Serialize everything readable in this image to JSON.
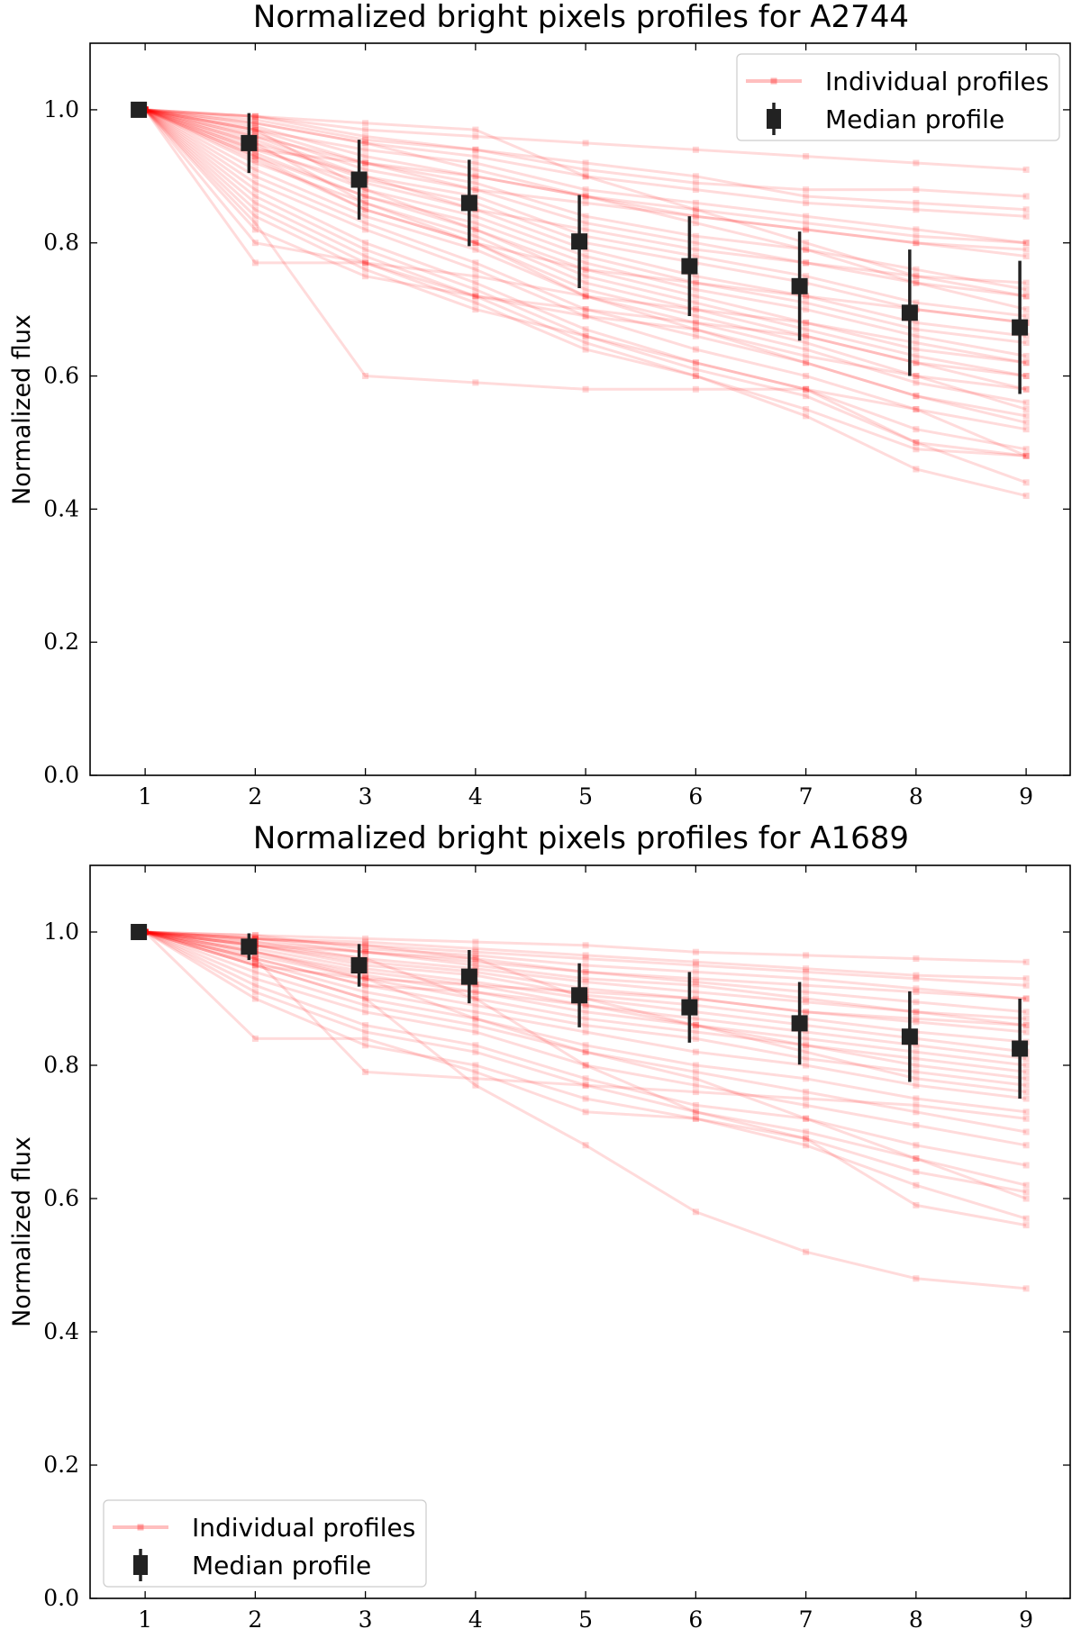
{
  "chart_data": [
    {
      "type": "line",
      "title": "Normalized bright pixels profiles for A2744",
      "xlabel": "",
      "ylabel": "Normalized flux",
      "x": [
        1,
        2,
        3,
        4,
        5,
        6,
        7,
        8,
        9
      ],
      "xticks": [
        "1",
        "2",
        "3",
        "4",
        "5",
        "6",
        "7",
        "8",
        "9"
      ],
      "yticks": [
        "0.0",
        "0.2",
        "0.4",
        "0.6",
        "0.8",
        "1.0"
      ],
      "xlim": [
        0.5,
        9.4
      ],
      "ylim": [
        0.0,
        1.1
      ],
      "legend_position": "top-right",
      "series": [
        {
          "name": "Individual profiles",
          "color": "#ff0000",
          "style": "faint lines with square markers",
          "count": "many"
        },
        {
          "name": "Median profile",
          "color": "#222222",
          "style": "square markers with error bars",
          "x": [
            1,
            2,
            3,
            4,
            5,
            6,
            7,
            8,
            9
          ],
          "values": [
            1.0,
            0.95,
            0.895,
            0.86,
            0.802,
            0.765,
            0.735,
            0.695,
            0.673
          ],
          "errors": [
            0.0,
            0.045,
            0.06,
            0.065,
            0.07,
            0.075,
            0.082,
            0.095,
            0.1
          ]
        }
      ],
      "individual_profiles_sample": [
        [
          1.0,
          0.99,
          0.97,
          0.96,
          0.95,
          0.94,
          0.93,
          0.92,
          0.91
        ],
        [
          1.0,
          0.99,
          0.96,
          0.94,
          0.91,
          0.89,
          0.88,
          0.88,
          0.87
        ],
        [
          1.0,
          0.98,
          0.95,
          0.93,
          0.9,
          0.88,
          0.86,
          0.85,
          0.84
        ],
        [
          1.0,
          0.985,
          0.955,
          0.94,
          0.92,
          0.9,
          0.87,
          0.86,
          0.85
        ],
        [
          1.0,
          0.97,
          0.94,
          0.92,
          0.88,
          0.86,
          0.84,
          0.82,
          0.8
        ],
        [
          1.0,
          0.975,
          0.93,
          0.9,
          0.87,
          0.84,
          0.82,
          0.8,
          0.78
        ],
        [
          1.0,
          0.96,
          0.92,
          0.89,
          0.84,
          0.81,
          0.79,
          0.76,
          0.73
        ],
        [
          1.0,
          0.965,
          0.91,
          0.88,
          0.83,
          0.8,
          0.77,
          0.74,
          0.72
        ],
        [
          1.0,
          0.95,
          0.9,
          0.87,
          0.81,
          0.78,
          0.75,
          0.71,
          0.69
        ],
        [
          1.0,
          0.955,
          0.895,
          0.86,
          0.8,
          0.77,
          0.74,
          0.7,
          0.68
        ],
        [
          1.0,
          0.94,
          0.89,
          0.85,
          0.79,
          0.75,
          0.72,
          0.68,
          0.66
        ],
        [
          1.0,
          0.945,
          0.88,
          0.84,
          0.78,
          0.74,
          0.71,
          0.67,
          0.65
        ],
        [
          1.0,
          0.93,
          0.87,
          0.83,
          0.77,
          0.73,
          0.7,
          0.66,
          0.63
        ],
        [
          1.0,
          0.935,
          0.87,
          0.82,
          0.76,
          0.72,
          0.68,
          0.64,
          0.62
        ],
        [
          1.0,
          0.92,
          0.86,
          0.81,
          0.74,
          0.7,
          0.66,
          0.62,
          0.6
        ],
        [
          1.0,
          0.925,
          0.85,
          0.8,
          0.73,
          0.69,
          0.65,
          0.6,
          0.58
        ],
        [
          1.0,
          0.91,
          0.84,
          0.79,
          0.72,
          0.68,
          0.64,
          0.59,
          0.56
        ],
        [
          1.0,
          0.9,
          0.83,
          0.77,
          0.7,
          0.66,
          0.62,
          0.57,
          0.54
        ],
        [
          1.0,
          0.89,
          0.82,
          0.76,
          0.69,
          0.64,
          0.6,
          0.55,
          0.52
        ],
        [
          1.0,
          0.88,
          0.8,
          0.74,
          0.67,
          0.62,
          0.58,
          0.52,
          0.49
        ],
        [
          1.0,
          0.87,
          0.79,
          0.73,
          0.66,
          0.61,
          0.57,
          0.5,
          0.48
        ],
        [
          1.0,
          0.86,
          0.78,
          0.72,
          0.65,
          0.6,
          0.55,
          0.49,
          0.48
        ],
        [
          1.0,
          0.85,
          0.77,
          0.71,
          0.64,
          0.6,
          0.54,
          0.46,
          0.42
        ],
        [
          1.0,
          0.84,
          0.76,
          0.7,
          0.66,
          0.62,
          0.58,
          0.5,
          0.44
        ],
        [
          1.0,
          0.82,
          0.75,
          0.72,
          0.7,
          0.68,
          0.66,
          0.62,
          0.58
        ],
        [
          1.0,
          0.8,
          0.77,
          0.75,
          0.72,
          0.7,
          0.68,
          0.65,
          0.62
        ],
        [
          1.0,
          0.77,
          0.77,
          0.72,
          0.69,
          0.67,
          0.63,
          0.6,
          0.55
        ],
        [
          1.0,
          0.83,
          0.6,
          0.59,
          0.58,
          0.58,
          0.58,
          0.55,
          0.48
        ],
        [
          1.0,
          0.97,
          0.92,
          0.88,
          0.86,
          0.84,
          0.82,
          0.8,
          0.79
        ],
        [
          1.0,
          0.96,
          0.9,
          0.85,
          0.82,
          0.79,
          0.77,
          0.75,
          0.74
        ],
        [
          1.0,
          0.93,
          0.85,
          0.8,
          0.76,
          0.74,
          0.72,
          0.7,
          0.68
        ],
        [
          1.0,
          0.98,
          0.95,
          0.91,
          0.87,
          0.83,
          0.79,
          0.74,
          0.7
        ],
        [
          1.0,
          0.97,
          0.88,
          0.82,
          0.75,
          0.71,
          0.67,
          0.63,
          0.6
        ],
        [
          1.0,
          0.95,
          0.86,
          0.8,
          0.72,
          0.67,
          0.62,
          0.57,
          0.53
        ],
        [
          1.0,
          0.99,
          0.98,
          0.97,
          0.9,
          0.85,
          0.8,
          0.75,
          0.72
        ],
        [
          1.0,
          0.94,
          0.92,
          0.9,
          0.87,
          0.85,
          0.83,
          0.81,
          0.8
        ]
      ]
    },
    {
      "type": "line",
      "title": "Normalized bright pixels profiles for A1689",
      "xlabel": "",
      "ylabel": "Normalized flux",
      "x": [
        1,
        2,
        3,
        4,
        5,
        6,
        7,
        8,
        9
      ],
      "xticks": [
        "1",
        "2",
        "3",
        "4",
        "5",
        "6",
        "7",
        "8",
        "9"
      ],
      "yticks": [
        "0.0",
        "0.2",
        "0.4",
        "0.6",
        "0.8",
        "1.0"
      ],
      "xlim": [
        0.5,
        9.4
      ],
      "ylim": [
        0.0,
        1.1
      ],
      "legend_position": "bottom-left",
      "series": [
        {
          "name": "Individual profiles",
          "color": "#ff0000",
          "style": "faint lines with square markers",
          "count": "many"
        },
        {
          "name": "Median profile",
          "color": "#222222",
          "style": "square markers with error bars",
          "x": [
            1,
            2,
            3,
            4,
            5,
            6,
            7,
            8,
            9
          ],
          "values": [
            1.0,
            0.978,
            0.95,
            0.933,
            0.905,
            0.887,
            0.863,
            0.843,
            0.825
          ],
          "errors": [
            0.0,
            0.02,
            0.032,
            0.04,
            0.048,
            0.053,
            0.062,
            0.068,
            0.075
          ]
        }
      ],
      "individual_profiles_sample": [
        [
          1.0,
          0.995,
          0.99,
          0.985,
          0.98,
          0.97,
          0.965,
          0.96,
          0.955
        ],
        [
          1.0,
          0.99,
          0.98,
          0.97,
          0.96,
          0.95,
          0.94,
          0.93,
          0.92
        ],
        [
          1.0,
          0.995,
          0.975,
          0.965,
          0.95,
          0.94,
          0.93,
          0.915,
          0.9
        ],
        [
          1.0,
          0.99,
          0.97,
          0.955,
          0.94,
          0.925,
          0.91,
          0.895,
          0.88
        ],
        [
          1.0,
          0.985,
          0.96,
          0.945,
          0.925,
          0.91,
          0.895,
          0.88,
          0.87
        ],
        [
          1.0,
          0.98,
          0.955,
          0.94,
          0.915,
          0.9,
          0.88,
          0.865,
          0.85
        ],
        [
          1.0,
          0.98,
          0.95,
          0.935,
          0.905,
          0.89,
          0.87,
          0.85,
          0.835
        ],
        [
          1.0,
          0.975,
          0.945,
          0.925,
          0.9,
          0.88,
          0.86,
          0.84,
          0.82
        ],
        [
          1.0,
          0.97,
          0.94,
          0.92,
          0.89,
          0.87,
          0.85,
          0.83,
          0.81
        ],
        [
          1.0,
          0.97,
          0.935,
          0.91,
          0.88,
          0.86,
          0.84,
          0.82,
          0.8
        ],
        [
          1.0,
          0.965,
          0.93,
          0.9,
          0.87,
          0.85,
          0.83,
          0.8,
          0.78
        ],
        [
          1.0,
          0.96,
          0.92,
          0.89,
          0.86,
          0.84,
          0.81,
          0.79,
          0.77
        ],
        [
          1.0,
          0.955,
          0.91,
          0.88,
          0.85,
          0.82,
          0.8,
          0.77,
          0.75
        ],
        [
          1.0,
          0.95,
          0.9,
          0.87,
          0.83,
          0.8,
          0.78,
          0.75,
          0.73
        ],
        [
          1.0,
          0.94,
          0.89,
          0.86,
          0.82,
          0.79,
          0.76,
          0.73,
          0.7
        ],
        [
          1.0,
          0.93,
          0.88,
          0.85,
          0.8,
          0.77,
          0.74,
          0.71,
          0.68
        ],
        [
          1.0,
          0.92,
          0.86,
          0.83,
          0.78,
          0.74,
          0.72,
          0.68,
          0.65
        ],
        [
          1.0,
          0.91,
          0.85,
          0.82,
          0.77,
          0.73,
          0.7,
          0.66,
          0.62
        ],
        [
          1.0,
          0.9,
          0.83,
          0.8,
          0.75,
          0.72,
          0.69,
          0.64,
          0.61
        ],
        [
          1.0,
          0.84,
          0.84,
          0.79,
          0.73,
          0.72,
          0.68,
          0.62,
          0.57
        ],
        [
          1.0,
          0.96,
          0.79,
          0.78,
          0.77,
          0.76,
          0.75,
          0.74,
          0.72
        ],
        [
          1.0,
          0.95,
          0.9,
          0.77,
          0.68,
          0.58,
          0.52,
          0.48,
          0.465
        ],
        [
          1.0,
          0.98,
          0.96,
          0.9,
          0.8,
          0.73,
          0.69,
          0.59,
          0.56
        ],
        [
          1.0,
          0.97,
          0.93,
          0.87,
          0.82,
          0.78,
          0.72,
          0.66,
          0.6
        ],
        [
          1.0,
          0.98,
          0.97,
          0.96,
          0.94,
          0.93,
          0.92,
          0.91,
          0.9
        ],
        [
          1.0,
          0.99,
          0.985,
          0.975,
          0.965,
          0.955,
          0.945,
          0.935,
          0.93
        ],
        [
          1.0,
          0.985,
          0.97,
          0.95,
          0.93,
          0.92,
          0.9,
          0.88,
          0.86
        ],
        [
          1.0,
          0.99,
          0.98,
          0.96,
          0.9,
          0.86,
          0.82,
          0.78,
          0.76
        ],
        [
          1.0,
          0.96,
          0.92,
          0.91,
          0.89,
          0.86,
          0.83,
          0.81,
          0.79
        ],
        [
          1.0,
          0.95,
          0.93,
          0.92,
          0.91,
          0.9,
          0.88,
          0.87,
          0.86
        ]
      ]
    }
  ]
}
